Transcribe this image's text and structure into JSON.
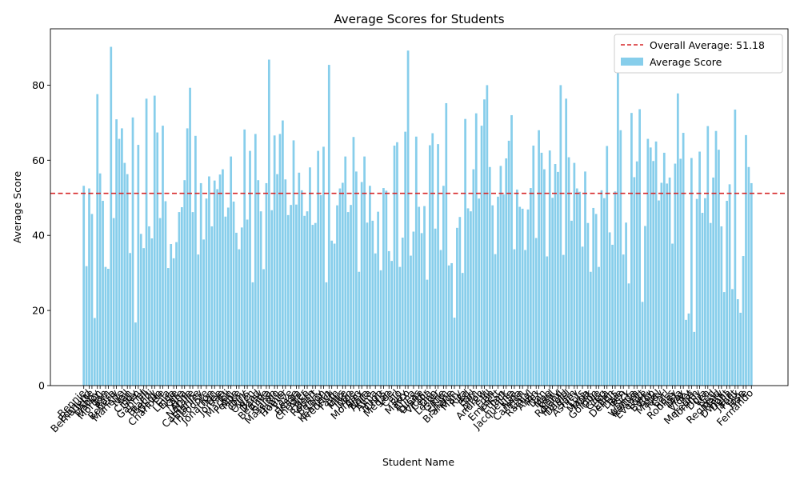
{
  "chart_data": {
    "type": "bar",
    "title": "Average Scores for Students",
    "xlabel": "Student Name",
    "ylabel": "Average Score",
    "ylim": [
      0,
      95
    ],
    "yticks": [
      0,
      20,
      40,
      60,
      80
    ],
    "bar_color": "#87ceeb",
    "reference_line": {
      "label": "Overall Average: 51.18",
      "value": 51.18,
      "color": "#d62728",
      "style": "dashed"
    },
    "legend": {
      "position": "top-right",
      "series_label": "Average Score"
    },
    "values": [
      53.2,
      31.8,
      52.5,
      45.7,
      18.0,
      77.6,
      56.5,
      49.2,
      31.6,
      31.1,
      90.2,
      44.6,
      70.9,
      65.7,
      68.5,
      59.3,
      56.3,
      35.3,
      71.4,
      16.8,
      64.1,
      40.4,
      36.6,
      76.4,
      42.4,
      39.2,
      77.2,
      67.4,
      44.6,
      69.2,
      49.1,
      31.3,
      37.7,
      33.9,
      38.2,
      46.2,
      47.5,
      54.7,
      68.5,
      79.3,
      46.2,
      66.5,
      34.9,
      53.9,
      38.9,
      49.8,
      55.7,
      42.4,
      54.6,
      52.3,
      56.2,
      57.6,
      45.0,
      47.4,
      61.0,
      49.0,
      40.7,
      36.3,
      42.1,
      68.2,
      44.2,
      62.5,
      27.5,
      67.0,
      54.7,
      46.4,
      31.0,
      53.9,
      86.8,
      46.7,
      66.6,
      56.3,
      67.0,
      70.6,
      54.9,
      45.4,
      48.1,
      65.3,
      48.2,
      56.7,
      52.0,
      45.2,
      46.4,
      58.1,
      42.8,
      43.3,
      62.5,
      50.7,
      63.6,
      27.5,
      85.4,
      38.6,
      37.8,
      48.0,
      52.5,
      54.0,
      61.0,
      46.2,
      48.1,
      66.2,
      57.0,
      30.3,
      54.2,
      61.0,
      43.4,
      53.2,
      43.9,
      35.2,
      46.3,
      30.7,
      52.6,
      51.9,
      35.8,
      33.2,
      63.9,
      64.8,
      31.6,
      39.4,
      67.6,
      89.2,
      34.6,
      41.0,
      66.3,
      47.6,
      40.6,
      47.8,
      28.2,
      64.0,
      67.2,
      41.8,
      64.3,
      36.1,
      53.2,
      75.2,
      32.0,
      32.6,
      18.1,
      42.0,
      44.9,
      30.0,
      71.0,
      47.2,
      46.4,
      57.6,
      72.5,
      49.8,
      69.2,
      76.2,
      80.0,
      58.2,
      48.0,
      35.0,
      50.3,
      58.5,
      50.9,
      60.5,
      65.2,
      72.0,
      36.3,
      52.2,
      47.6,
      47.1,
      36.1,
      46.9,
      52.6,
      63.9,
      39.3,
      68.0,
      62.0,
      57.6,
      34.4,
      62.6,
      50.0,
      59.0,
      56.9,
      80.0,
      34.8,
      76.4,
      60.8,
      43.9,
      59.3,
      52.5,
      51.6,
      37.0,
      57.0,
      43.3,
      30.3,
      47.3,
      45.7,
      31.6,
      52.0,
      49.9,
      63.8,
      40.8,
      37.5,
      51.7,
      84.2,
      68.0,
      34.9,
      43.4,
      27.2,
      72.6,
      55.5,
      59.7,
      73.6,
      22.3,
      42.5,
      65.7,
      63.4,
      59.8,
      65.0,
      49.3,
      54.0,
      62.0,
      53.8,
      55.4,
      37.8,
      59.1,
      77.8,
      60.4,
      67.3,
      17.5,
      19.2,
      60.6,
      14.3,
      49.7,
      62.3,
      46.0,
      49.9,
      69.1,
      43.3,
      55.4,
      67.8,
      62.8,
      42.4,
      24.9,
      49.2,
      53.6,
      25.7,
      73.5,
      23.0,
      19.4,
      34.5,
      66.7,
      58.2,
      53.9
    ],
    "visible_tick_labels": [
      "Bennie",
      "Edmund",
      "Bernadette",
      "Abby",
      "Marion",
      "Morgan",
      "Tom",
      "Rosa",
      "Beverly",
      "Marlene",
      "Nell",
      "Ian",
      "Cindy",
      "Glen",
      "Gabriel",
      "Jill",
      "Brandi",
      "Becky",
      "Devin",
      "Charlotte",
      "Ella",
      "Linda",
      "Elsie",
      "Kate",
      "Ana",
      "Anne",
      "Natalie",
      "Catherine",
      "Stanley",
      "Theodore",
      "Jon",
      "Jonathan",
      "Lee",
      "Jordan",
      "Eli",
      "Marlon",
      "Felipe",
      "Mike",
      "Tony",
      "Chris",
      "Owen",
      "Brad",
      "Daisy",
      "Bernice",
      "Anita",
      "Sarah",
      "Massimo",
      "Jamie",
      "Homer",
      "Faye",
      "Jesse",
      "Emma",
      "Chester",
      "Alice",
      "Beth",
      "Robert",
      "Benny",
      "Leon",
      "Kenneth",
      "Fredrick",
      "Faith",
      "Ellis",
      "Mike",
      "Joan",
      "Moe",
      "Morgan",
      "Alex",
      "Nora",
      "Anita",
      "Alma",
      "Hugo",
      "Chris",
      "Megan",
      "Lee",
      "Carl",
      "Jo",
      "Ray",
      "Marco",
      "Anna",
      "Lucas",
      "Diane",
      "Victor",
      "Celia",
      "Dan",
      "Lester",
      "Gene",
      "Kim",
      "Shane",
      "Brandon",
      "Mary",
      "Rita",
      "Ed",
      "Earl",
      "Tim",
      "Alton",
      "Andrew",
      "Jill",
      "Fran",
      "Emmett",
      "Ethan",
      "Jack",
      "Jacqueline",
      "Lisa",
      "Nina",
      "Carmen",
      "Gary",
      "Rachel",
      "Alvin",
      "Rex",
      "Dan",
      "Mae",
      "Paul",
      "Kelly",
      "Roland",
      "Harold",
      "Daniel",
      "Sam",
      "Ashley",
      "Luis",
      "Marla",
      "Mark",
      "Gordon",
      "Ollie",
      "Greg",
      "Ida",
      "Ellen",
      "Dennis",
      "Dale",
      "Ben",
      "Rick",
      "Wanda",
      "Kaitlyn",
      "Everett",
      "Luke",
      "Betty",
      "Bob",
      "Mabel",
      "Judy",
      "Carl",
      "Ross",
      "Rodney",
      "Lola",
      "Max",
      "Vicky",
      "Pat",
      "Meredith",
      "Tommy",
      "Dora",
      "Leo",
      "Ned",
      "Reginald",
      "Mary",
      "Dwight",
      "Della",
      "Janet",
      "Felix",
      "Jose",
      "Hale",
      "Fernando"
    ]
  }
}
